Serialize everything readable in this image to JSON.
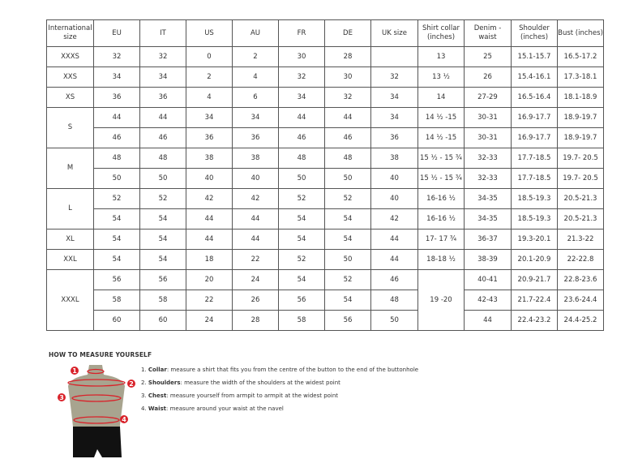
{
  "table": {
    "headers": [
      "International size",
      "EU",
      "IT",
      "US",
      "AU",
      "FR",
      "DE",
      "UK size",
      "Shirt collar (inches)",
      "Denim - waist",
      "Shoulder (inches)",
      "Bust (inches)"
    ],
    "groups": [
      {
        "size": "XXXS",
        "rows": [
          [
            "32",
            "32",
            "0",
            "2",
            "30",
            "28",
            "",
            "13",
            "25",
            "15.1-15.7",
            "16.5-17.2"
          ]
        ]
      },
      {
        "size": "XXS",
        "rows": [
          [
            "34",
            "34",
            "2",
            "4",
            "32",
            "30",
            "32",
            "13 ½",
            "26",
            "15.4-16.1",
            "17.3-18.1"
          ]
        ]
      },
      {
        "size": "XS",
        "rows": [
          [
            "36",
            "36",
            "4",
            "6",
            "34",
            "32",
            "34",
            "14",
            "27-29",
            "16.5-16.4",
            "18.1-18.9"
          ]
        ]
      },
      {
        "size": "S",
        "rows": [
          [
            "44",
            "44",
            "34",
            "34",
            "44",
            "44",
            "34",
            "14 ½ -15",
            "30-31",
            "16.9-17.7",
            "18.9-19.7"
          ],
          [
            "46",
            "46",
            "36",
            "36",
            "46",
            "46",
            "36",
            "14 ½ -15",
            "30-31",
            "16.9-17.7",
            "18.9-19.7"
          ]
        ]
      },
      {
        "size": "M",
        "rows": [
          [
            "48",
            "48",
            "38",
            "38",
            "48",
            "48",
            "38",
            "15 ½ - 15 ¾",
            "32-33",
            "17.7-18.5",
            "19.7- 20.5"
          ],
          [
            "50",
            "50",
            "40",
            "40",
            "50",
            "50",
            "40",
            "15 ½ - 15 ¾",
            "32-33",
            "17.7-18.5",
            "19.7- 20.5"
          ]
        ]
      },
      {
        "size": "L",
        "rows": [
          [
            "52",
            "52",
            "42",
            "42",
            "52",
            "52",
            "40",
            "16-16 ½",
            "34-35",
            "18.5-19.3",
            "20.5-21.3"
          ],
          [
            "54",
            "54",
            "44",
            "44",
            "54",
            "54",
            "42",
            "16-16 ½",
            "34-35",
            "18.5-19.3",
            "20.5-21.3"
          ]
        ]
      },
      {
        "size": "XL",
        "rows": [
          [
            "54",
            "54",
            "44",
            "44",
            "54",
            "54",
            "44",
            "17- 17 ¾",
            "36-37",
            "19.3-20.1",
            "21.3-22"
          ]
        ]
      },
      {
        "size": "XXL",
        "rows": [
          [
            "54",
            "54",
            "18",
            "22",
            "52",
            "50",
            "44",
            "18-18 ½",
            "38-39",
            "20.1-20.9",
            "22-22.8"
          ]
        ]
      },
      {
        "size": "XXXL",
        "collar": "19 -20",
        "rows": [
          [
            "56",
            "56",
            "20",
            "24",
            "54",
            "52",
            "46",
            null,
            "40-41",
            "20.9-21.7",
            "22.8-23.6"
          ],
          [
            "58",
            "58",
            "22",
            "26",
            "56",
            "54",
            "48",
            null,
            "42-43",
            "21.7-22.4",
            "23.6-24.4"
          ],
          [
            "60",
            "60",
            "24",
            "28",
            "58",
            "56",
            "50",
            null,
            "44",
            "22.4-23.2",
            "24.4-25.2"
          ]
        ]
      }
    ]
  },
  "guide": {
    "title": "HOW TO MEASURE YOURSELF",
    "markers": [
      "1",
      "2",
      "3",
      "4"
    ],
    "steps": [
      {
        "num": "1.",
        "term": "Collar",
        "text": ": measure a shirt that fits you from the centre of the button to the end of the buttonhole"
      },
      {
        "num": "2.",
        "term": "Shoulders",
        "text": ": measure the width of the shoulders at the widest point"
      },
      {
        "num": "3.",
        "term": "Chest",
        "text": ": measure yourself from armpit to armpit at the widest point"
      },
      {
        "num": "4.",
        "term": "Waist",
        "text": ": measure around your waist at the navel"
      }
    ]
  },
  "colors": {
    "marker": "#d9222a",
    "torso": "#a8a48f",
    "shorts": "#111111"
  }
}
